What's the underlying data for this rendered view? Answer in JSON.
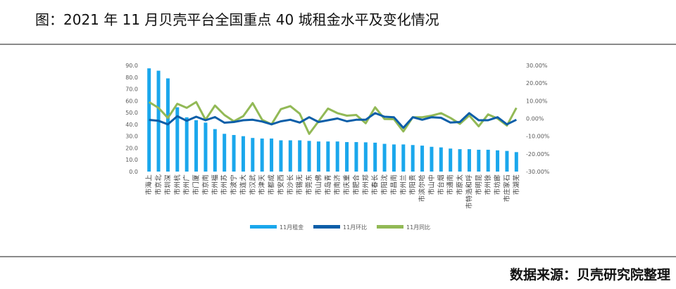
{
  "title": "图：2021 年 11 月贝壳平台全国重点 40 城租金水平及变化情况",
  "source": "数据来源：贝壳研究院整理",
  "colors": {
    "rent": "#1aa7ec",
    "mom": "#0b5ea8",
    "yoy": "#92b956"
  },
  "chart_data": {
    "type": "bar+line",
    "title": "",
    "categories": [
      "上海市",
      "北京市",
      "深圳市",
      "杭州市",
      "广州市",
      "厦门市",
      "南京市",
      "福州市",
      "苏州市",
      "宁波市",
      "大连市",
      "武汉市",
      "天津市",
      "成都市",
      "西安市",
      "长沙市",
      "无锡市",
      "东莞市",
      "佛山市",
      "青岛市",
      "济南市",
      "重庆市",
      "合肥市",
      "郑州市",
      "长春市",
      "沈阳市",
      "南昌市",
      "兰州市",
      "贵阳市",
      "哈尔滨市",
      "中山市",
      "烟台市",
      "南通市",
      "太原市",
      "呼和浩特市",
      "昆明市",
      "徐州市",
      "廊坊市",
      "石家庄市",
      "芜湖市"
    ],
    "left_axis": {
      "ylim": [
        0,
        90
      ],
      "ticks": [
        "0.0",
        "10.0",
        "20.0",
        "30.0",
        "40.0",
        "50.0",
        "60.0",
        "70.0",
        "80.0",
        "90.0"
      ]
    },
    "right_axis": {
      "ylim": [
        -30,
        30
      ],
      "unit": "%",
      "ticks": [
        "-30.00%",
        "-20.00%",
        "-10.00%",
        "0.00%",
        "10.00%",
        "20.00%",
        "30.00%"
      ]
    },
    "legend_position": "bottom",
    "grid": false,
    "series": [
      {
        "name": "11月租金",
        "type": "bar",
        "axis": "left",
        "values": [
          87.5,
          85.5,
          79,
          54.5,
          46,
          43.5,
          41.5,
          36,
          32,
          31,
          30,
          28.5,
          28,
          28,
          26.5,
          26.5,
          26.5,
          26,
          25.5,
          25.5,
          25.5,
          25,
          25,
          24.8,
          24.5,
          23.5,
          23,
          23,
          22.5,
          22,
          21,
          20.5,
          19.5,
          19,
          19,
          18.5,
          18.5,
          18,
          17.5,
          16.5
        ]
      },
      {
        "name": "11月环比",
        "type": "line",
        "axis": "right",
        "values": [
          -0.8,
          -1.3,
          -3.3,
          1.3,
          -1.3,
          1,
          -1,
          0.8,
          -2.4,
          -2,
          -1,
          -0.7,
          -1.7,
          -3.3,
          -1.6,
          -0.7,
          -2.3,
          0.7,
          -2,
          -1,
          0,
          -1.6,
          -0.7,
          -0.7,
          3,
          1,
          0.7,
          -5.3,
          0.7,
          -0.7,
          0.7,
          0.4,
          -2.3,
          -2,
          3,
          -1,
          -1,
          0.7,
          -3.3,
          -0.7
        ]
      },
      {
        "name": "11月同比",
        "type": "line",
        "axis": "right",
        "values": [
          9.3,
          6,
          0.3,
          8.3,
          6,
          9.3,
          -0.7,
          7.3,
          2,
          -1.6,
          1.3,
          8.7,
          -0.7,
          -3.3,
          5.3,
          7,
          2.7,
          -8.7,
          -1.6,
          5.6,
          3,
          1.6,
          2,
          -2.7,
          6.3,
          -0.3,
          -0.4,
          -7.3,
          0.7,
          0.7,
          1.6,
          3,
          0.3,
          -3,
          1.7,
          -4.4,
          2.3,
          0,
          -4,
          6
        ]
      }
    ]
  }
}
